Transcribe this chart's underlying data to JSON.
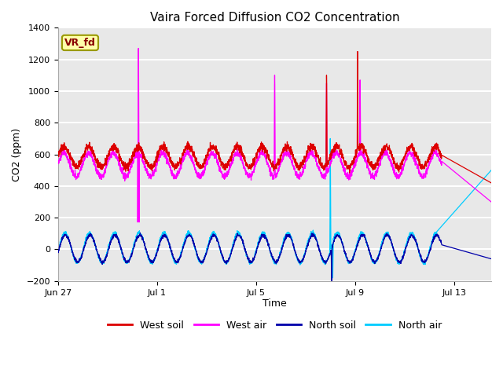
{
  "title": "Vaira Forced Diffusion CO2 Concentration",
  "xlabel": "Time",
  "ylabel": "CO2 (ppm)",
  "xlim_days": [
    0,
    17.5
  ],
  "ylim": [
    -200,
    1400
  ],
  "yticks": [
    -200,
    0,
    200,
    400,
    600,
    800,
    1000,
    1200,
    1400
  ],
  "xtick_labels": [
    "Jun 27",
    "Jul 1",
    "Jul 5",
    "Jul 9",
    "Jul 13"
  ],
  "xtick_positions": [
    0,
    4,
    8,
    12,
    16
  ],
  "bg_color": "#e8e8e8",
  "grid_color": "white",
  "west_soil_color": "#dd0000",
  "west_air_color": "#ff00ff",
  "north_soil_color": "#0000aa",
  "north_air_color": "#00ccff",
  "legend_labels": [
    "West soil",
    "West air",
    "North soil",
    "North air"
  ],
  "annotation_text": "VR_fd",
  "annotation_color": "#880000",
  "annotation_bg": "#ffffaa"
}
